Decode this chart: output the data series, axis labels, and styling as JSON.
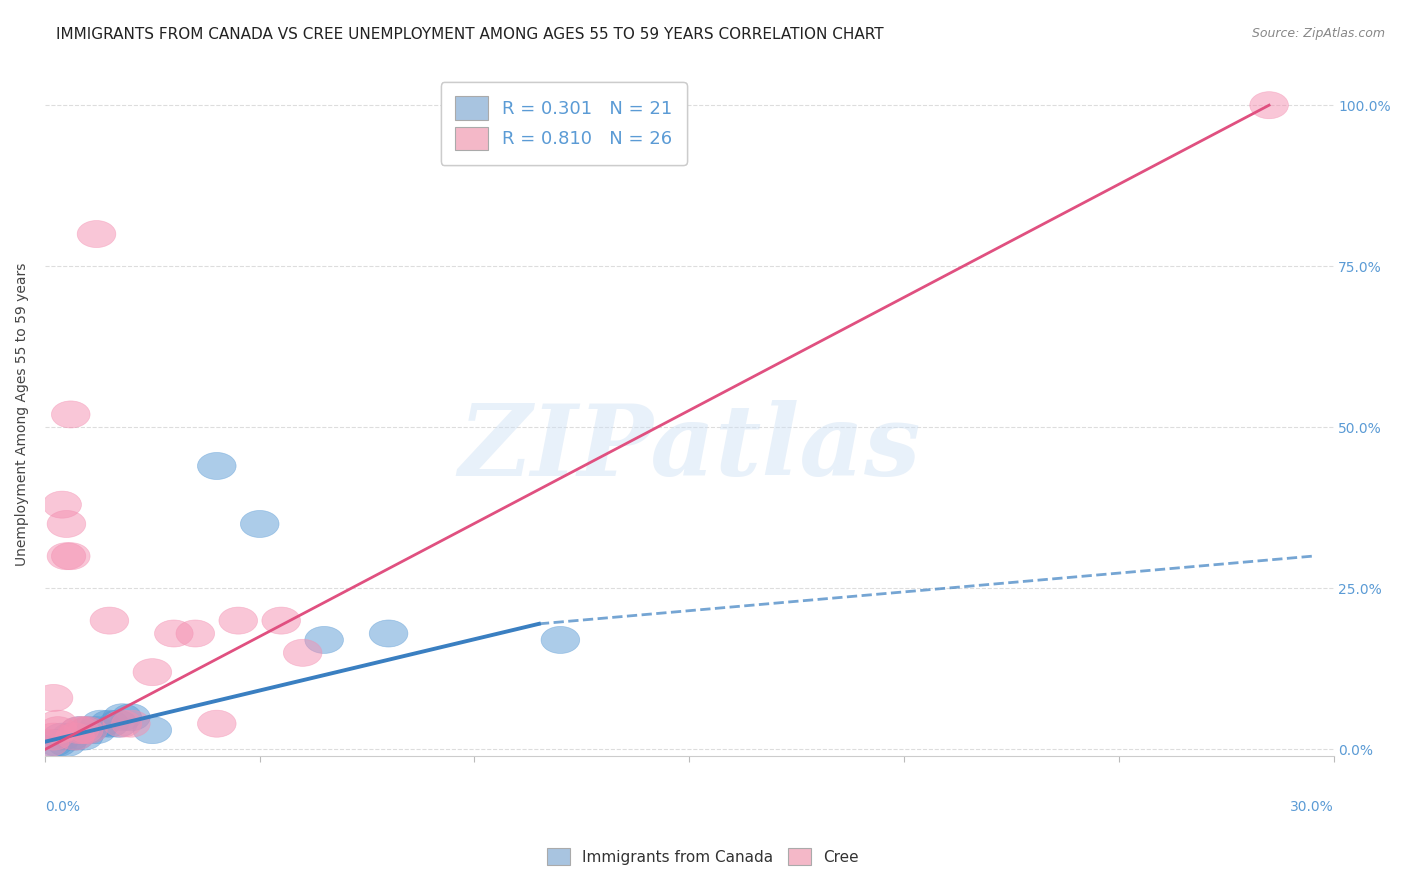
{
  "title": "IMMIGRANTS FROM CANADA VS CREE UNEMPLOYMENT AMONG AGES 55 TO 59 YEARS CORRELATION CHART",
  "source": "Source: ZipAtlas.com",
  "ylabel": "Unemployment Among Ages 55 to 59 years",
  "ytick_labels": [
    "0.0%",
    "25.0%",
    "50.0%",
    "75.0%",
    "100.0%"
  ],
  "ytick_values": [
    0.0,
    0.25,
    0.5,
    0.75,
    1.0
  ],
  "legend_entries": [
    {
      "label": "R = 0.301   N = 21",
      "color": "#a8c4e0"
    },
    {
      "label": "R = 0.810   N = 26",
      "color": "#f4b8c8"
    }
  ],
  "bottom_legend": [
    "Immigrants from Canada",
    "Cree"
  ],
  "watermark": "ZIPatlas",
  "blue_color": "#5b9bd5",
  "pink_color": "#f48fb1",
  "blue_line_color": "#3a7fc1",
  "pink_line_color": "#e05080",
  "blue_scatter": [
    [
      0.002,
      0.01
    ],
    [
      0.003,
      0.01
    ],
    [
      0.004,
      0.02
    ],
    [
      0.005,
      0.01
    ],
    [
      0.006,
      0.02
    ],
    [
      0.007,
      0.02
    ],
    [
      0.008,
      0.03
    ],
    [
      0.009,
      0.02
    ],
    [
      0.01,
      0.03
    ],
    [
      0.012,
      0.03
    ],
    [
      0.013,
      0.04
    ],
    [
      0.015,
      0.04
    ],
    [
      0.017,
      0.04
    ],
    [
      0.018,
      0.05
    ],
    [
      0.02,
      0.05
    ],
    [
      0.025,
      0.03
    ],
    [
      0.04,
      0.44
    ],
    [
      0.05,
      0.35
    ],
    [
      0.065,
      0.17
    ],
    [
      0.08,
      0.18
    ],
    [
      0.12,
      0.17
    ]
  ],
  "pink_scatter": [
    [
      0.001,
      0.01
    ],
    [
      0.002,
      0.02
    ],
    [
      0.002,
      0.08
    ],
    [
      0.003,
      0.03
    ],
    [
      0.004,
      0.38
    ],
    [
      0.005,
      0.3
    ],
    [
      0.005,
      0.35
    ],
    [
      0.006,
      0.3
    ],
    [
      0.006,
      0.52
    ],
    [
      0.007,
      0.02
    ],
    [
      0.008,
      0.03
    ],
    [
      0.009,
      0.03
    ],
    [
      0.01,
      0.03
    ],
    [
      0.012,
      0.8
    ],
    [
      0.015,
      0.2
    ],
    [
      0.018,
      0.04
    ],
    [
      0.02,
      0.04
    ],
    [
      0.025,
      0.12
    ],
    [
      0.03,
      0.18
    ],
    [
      0.035,
      0.18
    ],
    [
      0.04,
      0.04
    ],
    [
      0.045,
      0.2
    ],
    [
      0.055,
      0.2
    ],
    [
      0.06,
      0.15
    ],
    [
      0.285,
      1.0
    ],
    [
      0.003,
      0.04
    ]
  ],
  "xmin": 0.0,
  "xmax": 0.3,
  "ymin": -0.01,
  "ymax": 1.05,
  "grid_color": "#dddddd",
  "background_color": "#ffffff",
  "title_fontsize": 11,
  "axis_label_fontsize": 10,
  "tick_fontsize": 10,
  "blue_line_x0": 0.0,
  "blue_line_y0": 0.01,
  "blue_line_x1": 0.3,
  "blue_line_y1": 0.27,
  "pink_line_x0": 0.0,
  "pink_line_y0": 0.0,
  "pink_line_x1": 0.285,
  "pink_line_y1": 1.0
}
